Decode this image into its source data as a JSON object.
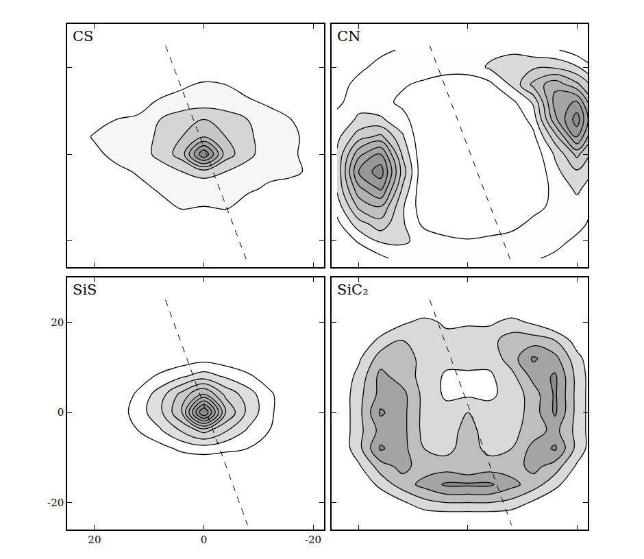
{
  "chart_data": [
    {
      "type": "contour",
      "title": "CS",
      "x": [
        24,
        20,
        16,
        12,
        8,
        4,
        0,
        -4,
        -8,
        -12,
        -16,
        -20,
        -24
      ],
      "y": [
        -24,
        -20,
        -16,
        -12,
        -8,
        -4,
        0,
        4,
        8,
        12,
        16,
        20,
        24
      ],
      "z": [
        [
          0,
          0,
          0,
          0,
          0,
          0,
          0,
          0,
          0,
          0,
          0,
          0,
          0
        ],
        [
          0,
          0,
          0,
          0,
          0,
          0,
          0,
          0,
          0,
          0,
          0,
          0,
          0
        ],
        [
          0,
          0,
          0,
          0,
          0,
          0,
          0,
          0,
          0,
          0,
          0,
          0,
          0
        ],
        [
          0,
          0,
          0,
          0,
          0.5,
          1.2,
          1.0,
          1.2,
          0.5,
          0,
          0,
          0,
          0
        ],
        [
          0,
          0,
          0,
          0.5,
          1.2,
          1.5,
          1.2,
          1.5,
          1.2,
          0.8,
          0,
          0,
          0
        ],
        [
          0,
          0,
          0.5,
          1.2,
          1.5,
          2,
          2.5,
          2,
          1.5,
          1.3,
          1.5,
          0.5,
          0
        ],
        [
          0,
          0.5,
          1.6,
          1.5,
          2.3,
          3.5,
          8,
          3.5,
          2.3,
          1.4,
          1.3,
          0.3,
          0
        ],
        [
          0,
          1.2,
          1.8,
          1.5,
          2.2,
          3,
          4,
          3,
          2.2,
          1.5,
          1.3,
          0.5,
          0
        ],
        [
          0,
          0.3,
          1,
          1.2,
          2,
          2.5,
          3,
          2.5,
          2,
          1.5,
          1,
          0,
          0
        ],
        [
          0,
          0,
          0,
          0.5,
          1.2,
          1.5,
          1.5,
          1.5,
          1.2,
          0.8,
          0,
          0,
          0
        ],
        [
          0,
          0,
          0,
          0,
          0.3,
          0.8,
          1.2,
          1,
          0.5,
          0,
          0,
          0,
          0
        ],
        [
          0,
          0,
          0,
          0,
          0,
          0,
          0,
          0,
          0,
          0,
          0,
          0,
          0
        ],
        [
          0,
          0,
          0,
          0,
          0,
          0,
          0,
          0,
          0,
          0,
          0,
          0,
          0
        ]
      ],
      "levels": [
        1,
        2,
        3,
        4,
        5,
        6,
        7
      ],
      "lines": [
        {
          "x": [
            7,
            -8
          ],
          "y": [
            25,
            -25
          ],
          "line_style": "dashed"
        }
      ],
      "xlim": [
        25,
        -22
      ],
      "ylim": [
        -26,
        30
      ],
      "xticks": [
        20,
        0,
        -20
      ],
      "yticks": [
        -20,
        0,
        20
      ],
      "tick_labels": false
    },
    {
      "type": "contour",
      "title": "CN",
      "x": [
        24,
        20,
        16,
        12,
        8,
        4,
        0,
        -4,
        -8,
        -12,
        -16,
        -20,
        -24
      ],
      "y": [
        -24,
        -20,
        -16,
        -12,
        -8,
        -4,
        0,
        4,
        8,
        12,
        16,
        20,
        24
      ],
      "z": [
        [
          0,
          0,
          0.5,
          1,
          1.2,
          1.2,
          1.2,
          1.2,
          1,
          0.8,
          0.5,
          0,
          0
        ],
        [
          0,
          0.8,
          1.5,
          1.5,
          1.2,
          1,
          0.8,
          1,
          1.2,
          1.2,
          1,
          0.5,
          0
        ],
        [
          0.5,
          1.8,
          2.5,
          1.5,
          0.5,
          0,
          0,
          0,
          0.3,
          1,
          1.2,
          1,
          0.3
        ],
        [
          1,
          3,
          3.5,
          1.5,
          0.2,
          0,
          0,
          0,
          0,
          0.3,
          1,
          1.2,
          0.5
        ],
        [
          1.5,
          4,
          5,
          2,
          0,
          0,
          0,
          0,
          0,
          0,
          1,
          1.5,
          1
        ],
        [
          1.5,
          5,
          6,
          2.5,
          0,
          0,
          0,
          0,
          0,
          0,
          1.2,
          2,
          1.2
        ],
        [
          1.5,
          4,
          5,
          2,
          0,
          0,
          0,
          0,
          0,
          0.2,
          1.5,
          3,
          1.5
        ],
        [
          1.2,
          2.5,
          3,
          1.5,
          0,
          0,
          0,
          0,
          0,
          0.5,
          2.5,
          5,
          2
        ],
        [
          1,
          1.5,
          1.5,
          1,
          0,
          0,
          -0.3,
          0,
          0,
          1,
          4,
          6,
          2.5
        ],
        [
          0.5,
          1.2,
          1,
          0.5,
          0,
          0,
          -0.3,
          0,
          0.5,
          1.5,
          4.5,
          5,
          2
        ],
        [
          0.3,
          1,
          1.2,
          0.8,
          0.5,
          0.3,
          0.3,
          0.5,
          1.5,
          3,
          4,
          3,
          1.5
        ],
        [
          0,
          0.5,
          1,
          1.2,
          1.2,
          1,
          1,
          1.5,
          2,
          2,
          2,
          1.5,
          0.5
        ],
        [
          0,
          0,
          0.5,
          0.8,
          1,
          1,
          1,
          1.2,
          1.2,
          1,
          0.8,
          0.3,
          0
        ]
      ],
      "levels": [
        0.7,
        1.4,
        2.1,
        2.8,
        3.5,
        4.2,
        4.9,
        5.6
      ],
      "lines": [
        {
          "x": [
            7,
            -8
          ],
          "y": [
            25,
            -25
          ],
          "line_style": "dashed"
        }
      ],
      "xlim": [
        25,
        -22
      ],
      "ylim": [
        -26,
        30
      ],
      "xticks": [
        20,
        0,
        -20
      ],
      "yticks": [
        -20,
        0,
        20
      ],
      "tick_labels": false
    },
    {
      "type": "contour",
      "title": "SiS",
      "x": [
        24,
        20,
        16,
        12,
        8,
        4,
        0,
        -4,
        -8,
        -12,
        -16,
        -20,
        -24
      ],
      "y": [
        -24,
        -20,
        -16,
        -12,
        -8,
        -4,
        0,
        4,
        8,
        12,
        16,
        20,
        24
      ],
      "z": [
        [
          0,
          0,
          0,
          0,
          0,
          0,
          0,
          0,
          0,
          0,
          0,
          0,
          0
        ],
        [
          0,
          0,
          0,
          0,
          0,
          0,
          0,
          0,
          0,
          0,
          0,
          0,
          0
        ],
        [
          0,
          0,
          0,
          0,
          0,
          0,
          0,
          0,
          0,
          0,
          0,
          0,
          0
        ],
        [
          0,
          0,
          0,
          0,
          0,
          0,
          0,
          0,
          0,
          0,
          0,
          0,
          0
        ],
        [
          0,
          0,
          0,
          0,
          0.5,
          1,
          1.2,
          1,
          0.8,
          0,
          0,
          0,
          0
        ],
        [
          0,
          0,
          0,
          0.8,
          1.5,
          2.5,
          3.5,
          2.5,
          1.5,
          0.8,
          0,
          0,
          0
        ],
        [
          0,
          0,
          0.3,
          1.2,
          2.2,
          4,
          9,
          4,
          2.2,
          1,
          0,
          0,
          0
        ],
        [
          0,
          0,
          0,
          1,
          2,
          3.5,
          5,
          3,
          2,
          1,
          0,
          0,
          0
        ],
        [
          0,
          0,
          0,
          0.3,
          1,
          1.5,
          2,
          1.5,
          1,
          0.3,
          0,
          0,
          0
        ],
        [
          0,
          0,
          0,
          0,
          0,
          0.3,
          0.5,
          0.3,
          0,
          0,
          0,
          0,
          0
        ],
        [
          0,
          0,
          0,
          0,
          0,
          0,
          0,
          0,
          0,
          0,
          0,
          0,
          0
        ],
        [
          0,
          0,
          0,
          0,
          0,
          0,
          0,
          0,
          0,
          0,
          0,
          0,
          0
        ],
        [
          0,
          0,
          0,
          0,
          0,
          0,
          0,
          0,
          0,
          0,
          0,
          0,
          0
        ]
      ],
      "levels": [
        0.8,
        1.6,
        2.4,
        3.2,
        4,
        4.8,
        5.6,
        6.4,
        7.2,
        8
      ],
      "lines": [
        {
          "x": [
            7,
            -8
          ],
          "y": [
            25,
            -25
          ],
          "line_style": "dashed"
        }
      ],
      "xlim": [
        25,
        -22
      ],
      "ylim": [
        -26,
        30
      ],
      "xticks": [
        20,
        0,
        -20
      ],
      "yticks": [
        -20,
        0,
        20
      ]
    },
    {
      "type": "contour",
      "title": "SiC₂",
      "x": [
        24,
        20,
        16,
        12,
        8,
        4,
        0,
        -4,
        -8,
        -12,
        -16,
        -20,
        -24
      ],
      "y": [
        -24,
        -20,
        -16,
        -12,
        -8,
        -4,
        0,
        4,
        8,
        12,
        16,
        20,
        24
      ],
      "z": [
        [
          0,
          0,
          0,
          0,
          0,
          0,
          0,
          0,
          0,
          0,
          0,
          0,
          0
        ],
        [
          0,
          0,
          0,
          0.5,
          1,
          1.2,
          1.2,
          1.2,
          1,
          0.5,
          0,
          0,
          0
        ],
        [
          0,
          0,
          0.8,
          1.5,
          2,
          2.5,
          2.5,
          2.5,
          2,
          1.5,
          0.8,
          0,
          0
        ],
        [
          0,
          0.5,
          1.5,
          2,
          1.5,
          1.5,
          1.2,
          1.5,
          1.5,
          2,
          1.5,
          0.5,
          0
        ],
        [
          0,
          1,
          2.5,
          2,
          1.2,
          1,
          1.5,
          1,
          1.2,
          2,
          2.5,
          1,
          0
        ],
        [
          0,
          1,
          2,
          2,
          1,
          0.8,
          1.5,
          0.8,
          1,
          1.5,
          2,
          1,
          0
        ],
        [
          0,
          1,
          2.5,
          2,
          1,
          0.8,
          1.2,
          0.8,
          0.8,
          1.5,
          2.5,
          1,
          0
        ],
        [
          0,
          1,
          2,
          2,
          1,
          0.5,
          0.5,
          0.5,
          0.8,
          1.5,
          2.5,
          1,
          0
        ],
        [
          0,
          0.8,
          2,
          1.5,
          1,
          0.5,
          0.5,
          0.5,
          1,
          2,
          2.5,
          1,
          0
        ],
        [
          0,
          0.5,
          1.5,
          1.5,
          1,
          0.8,
          0.8,
          0.8,
          1.5,
          2.5,
          2,
          0.8,
          0
        ],
        [
          0,
          0,
          0.8,
          1.2,
          1,
          0.8,
          1,
          1,
          1.5,
          1.5,
          1.2,
          0.3,
          0
        ],
        [
          0,
          0,
          0,
          0.5,
          0.8,
          0.5,
          0.5,
          0.5,
          0.8,
          0.5,
          0,
          0,
          0
        ],
        [
          0,
          0,
          0,
          0,
          0,
          0,
          0,
          0,
          0,
          0,
          0,
          0,
          0
        ]
      ],
      "levels": [
        0.6,
        1.2,
        1.8,
        2.4
      ],
      "lines": [
        {
          "x": [
            7,
            -8
          ],
          "y": [
            25,
            -25
          ],
          "line_style": "dashed"
        }
      ],
      "xlim": [
        25,
        -22
      ],
      "ylim": [
        -26,
        30
      ],
      "xticks": [
        20,
        0,
        -20
      ],
      "yticks": [
        -20,
        0,
        20
      ],
      "tick_labels": false
    }
  ]
}
